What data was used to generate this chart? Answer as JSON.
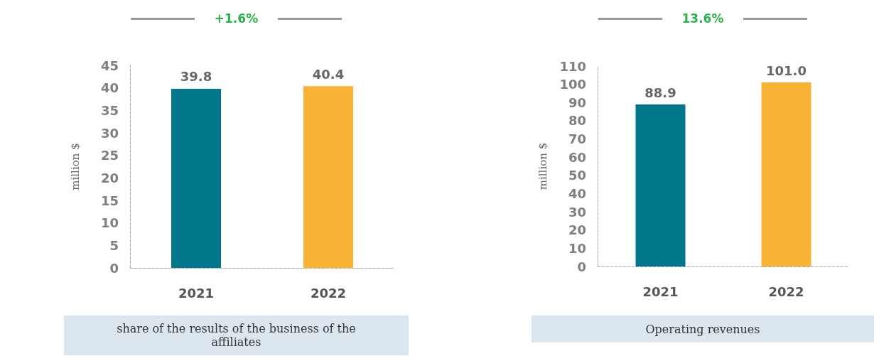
{
  "chart_data": [
    {
      "type": "bar",
      "title": "share of the results of the business of the affiliates",
      "ylabel": "million $",
      "annotations": [
        "+1.6%"
      ],
      "categories": [
        "2021",
        "2022"
      ],
      "values": [
        39.8,
        40.4
      ],
      "colors": [
        "#00768a",
        "#f9b233"
      ],
      "ylim": [
        0,
        45
      ],
      "yticks": [
        0,
        5,
        10,
        15,
        20,
        25,
        30,
        35,
        40,
        45
      ],
      "data_labels": true,
      "grid": false
    },
    {
      "type": "bar",
      "title": "Operating revenues",
      "ylabel": "million $",
      "annotations": [
        "13.6%"
      ],
      "categories": [
        "2021",
        "2022"
      ],
      "values": [
        88.9,
        101.0
      ],
      "value_labels": [
        "88.9",
        "101.0"
      ],
      "colors": [
        "#00768a",
        "#f9b233"
      ],
      "ylim": [
        0,
        110
      ],
      "yticks": [
        0,
        10,
        20,
        30,
        40,
        50,
        60,
        70,
        80,
        90,
        100,
        110
      ],
      "grid": false
    }
  ]
}
